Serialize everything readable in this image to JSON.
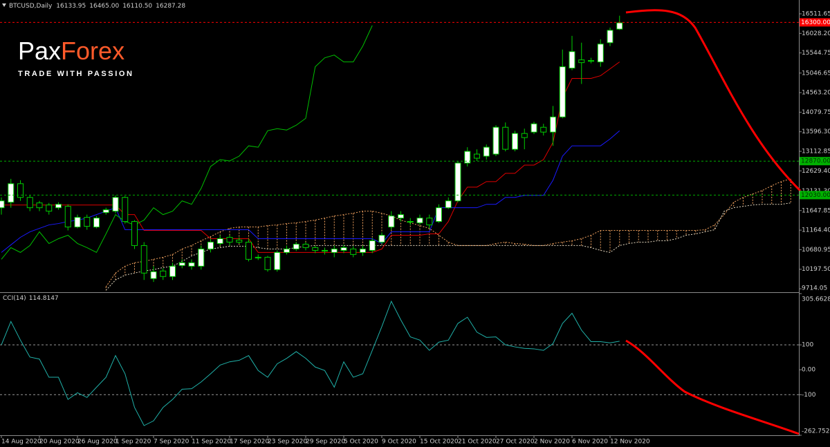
{
  "logo": {
    "brand_a": "Pax",
    "brand_b": "Forex",
    "tagline": "TRADE WITH PASSION"
  },
  "chart_data": [
    {
      "type": "candlestick",
      "title": "BTCUSD,Daily",
      "header_labels": [
        "16133.95",
        "16465.00",
        "16110.50",
        "16287.28"
      ],
      "categories": [
        "14 Aug 2020",
        null,
        null,
        null,
        "20 Aug 2020",
        null,
        null,
        null,
        "26 Aug 2020",
        null,
        null,
        null,
        "1 Sep 2020",
        null,
        null,
        null,
        "7 Sep 2020",
        null,
        null,
        null,
        "11 Sep 2020",
        null,
        null,
        null,
        "17 Sep 2020",
        null,
        null,
        null,
        "23 Sep 2020",
        null,
        null,
        null,
        "29 Sep 2020",
        null,
        null,
        null,
        "5 Oct 2020",
        null,
        null,
        null,
        "9 Oct 2020",
        null,
        null,
        null,
        "15 Oct 2020",
        null,
        null,
        null,
        "21 Oct 2020",
        null,
        null,
        null,
        "27 Oct 2020",
        null,
        null,
        null,
        "2 Nov 2020",
        null,
        null,
        null,
        "6 Nov 2020",
        null,
        null,
        null,
        "12 Nov 2020",
        null,
        null,
        null,
        null,
        null,
        null,
        null,
        null,
        null,
        null,
        null,
        null,
        null,
        null,
        null,
        null,
        null,
        null,
        null
      ],
      "open": [
        11718,
        11854,
        12313,
        11973,
        11837,
        11786,
        11718,
        11752,
        11242,
        11480,
        11242,
        11599,
        11633,
        11973,
        11378,
        10783,
        9967,
        10154,
        10018,
        10290,
        10273,
        10273,
        10698,
        10834,
        10987,
        10919,
        10868,
        10494,
        10494,
        10188,
        10613,
        10698,
        10817,
        10732,
        10664,
        10613,
        10664,
        10698,
        10613,
        10664,
        10868,
        11242,
        11463,
        11378,
        11344,
        11463,
        11378,
        11718,
        11888,
        12823,
        13044,
        12993,
        13044,
        13707,
        13163,
        13554,
        13588,
        13707,
        13588,
        13962,
        15169,
        15373,
        15356,
        15322,
        15798,
        16133.95,
        null,
        null,
        null,
        null,
        null,
        null,
        null,
        null,
        null,
        null,
        null,
        null,
        null,
        null,
        null,
        null,
        null,
        null
      ],
      "high": [
        11973,
        12432,
        12398,
        12024,
        11888,
        11837,
        11854,
        11803,
        11548,
        11548,
        11514,
        11718,
        12024,
        12007,
        11412,
        10868,
        10273,
        10222,
        10358,
        10443,
        10443,
        10783,
        10953,
        11038,
        11038,
        10987,
        10953,
        10562,
        10528,
        10664,
        10783,
        10868,
        10868,
        10783,
        10732,
        10783,
        10800,
        10766,
        10783,
        10970,
        11106,
        11633,
        11633,
        11463,
        11548,
        11548,
        11803,
        11973,
        12874,
        13214,
        13163,
        13282,
        13758,
        13826,
        13622,
        13673,
        13843,
        13792,
        14234,
        15628,
        15968,
        15798,
        15424,
        15883,
        16172,
        16465,
        null,
        null,
        null,
        null,
        null,
        null,
        null,
        null,
        null,
        null,
        null,
        null,
        null,
        null,
        null,
        null,
        null,
        null
      ],
      "low": [
        11548,
        11718,
        11888,
        11633,
        11633,
        11548,
        11667,
        11157,
        11208,
        11174,
        11208,
        11548,
        11582,
        11327,
        10698,
        9933,
        9882,
        9933,
        9933,
        10222,
        10188,
        10188,
        10613,
        10783,
        10783,
        10834,
        10392,
        10426,
        10137,
        10137,
        10562,
        10647,
        10664,
        10596,
        10562,
        10494,
        10596,
        10494,
        10528,
        10596,
        10817,
        11174,
        11378,
        11293,
        11293,
        11208,
        11344,
        11684,
        11854,
        12738,
        12874,
        12908,
        12993,
        13112,
        13112,
        13163,
        13537,
        13503,
        13248,
        13928,
        15118,
        14778,
        15288,
        15203,
        15713,
        16110.5,
        null,
        null,
        null,
        null,
        null,
        null,
        null,
        null,
        null,
        null,
        null,
        null,
        null,
        null,
        null,
        null,
        null,
        null
      ],
      "close": [
        11888,
        12313,
        11973,
        11718,
        11718,
        11633,
        11803,
        11242,
        11480,
        11259,
        11463,
        11667,
        11973,
        11378,
        10783,
        10103,
        10137,
        10018,
        10273,
        10358,
        10358,
        10698,
        10868,
        10953,
        10868,
        10868,
        10443,
        10477,
        10188,
        10613,
        10698,
        10817,
        10732,
        10664,
        10647,
        10698,
        10732,
        10562,
        10698,
        10902,
        11038,
        11514,
        11548,
        11361,
        11463,
        11293,
        11718,
        11888,
        12823,
        13112,
        12942,
        13214,
        13707,
        13163,
        13554,
        13452,
        13792,
        13588,
        13962,
        15203,
        15577,
        15305,
        15356,
        15764,
        16104,
        16287.28,
        null,
        null,
        null,
        null,
        null,
        null,
        null,
        null,
        null,
        null,
        null,
        null,
        null,
        null,
        null,
        null,
        null,
        null
      ],
      "up_color": "#ffffff",
      "down_color": "#000000",
      "wick_color": "#00d000",
      "series": [
        {
          "color": "#e00000",
          "values": [
            11786,
            11786,
            11786,
            11786,
            11786,
            11786,
            11786,
            11786,
            11786,
            11786,
            11786,
            11786,
            11786,
            11548,
            11548,
            11157,
            11157,
            11157,
            11157,
            11157,
            11157,
            11157,
            10953,
            10953,
            10953,
            10953,
            10953,
            10613,
            10613,
            10613,
            10613,
            10613,
            10613,
            10613,
            10613,
            10613,
            10613,
            10613,
            10613,
            10613,
            10698,
            11038,
            11038,
            11038,
            11038,
            11072,
            11072,
            11378,
            11888,
            12228,
            12228,
            12364,
            12364,
            12568,
            12568,
            12772,
            12772,
            12908,
            13333,
            14438,
            14914,
            14914,
            14914,
            14982,
            15152,
            15322,
            null,
            null,
            null,
            null,
            null,
            null,
            null,
            null,
            null,
            null,
            null,
            null,
            null,
            null,
            null,
            null,
            null,
            null
          ]
        },
        {
          "color": "#1a1aff",
          "values": [
            10613,
            10800,
            10987,
            11123,
            11208,
            11293,
            11327,
            11378,
            11412,
            11463,
            11548,
            11633,
            11718,
            11174,
            11174,
            11174,
            11174,
            11174,
            11174,
            11174,
            11174,
            11174,
            11174,
            11174,
            11174,
            11174,
            11174,
            10953,
            10953,
            10953,
            10953,
            10953,
            10953,
            10953,
            10953,
            10953,
            10953,
            10953,
            10953,
            10953,
            10834,
            11123,
            11123,
            11123,
            11123,
            11123,
            11718,
            11718,
            11718,
            11718,
            11718,
            11803,
            11803,
            11973,
            11973,
            12024,
            12024,
            12024,
            12398,
            12993,
            13248,
            13248,
            13248,
            13248,
            13418,
            13622,
            null,
            null,
            null,
            null,
            null,
            null,
            null,
            null,
            null,
            null,
            null,
            null,
            null,
            null,
            null,
            null,
            null,
            null
          ]
        },
        {
          "color": "#00c000",
          "values": [
            10443,
            10732,
            10613,
            10783,
            11123,
            10834,
            10953,
            11038,
            10834,
            10732,
            10613,
            11072,
            11548,
            11378,
            11293,
            11412,
            11718,
            11548,
            11633,
            11888,
            11803,
            12194,
            12738,
            12908,
            12874,
            12993,
            13248,
            13214,
            13622,
            13673,
            13639,
            13758,
            13928,
            15203,
            15424,
            15492,
            15322,
            15322,
            15713,
            16223,
            null,
            null,
            null,
            null,
            null,
            null,
            null,
            null,
            null,
            null,
            null,
            null,
            null,
            null,
            null,
            null,
            null,
            null,
            null,
            null,
            null,
            null,
            null,
            null,
            null,
            null,
            null,
            null,
            null,
            null,
            null,
            null,
            null,
            null,
            null,
            null,
            null,
            null,
            null,
            null,
            null,
            null,
            null,
            null
          ]
        }
      ],
      "cloud": {
        "color_a": "#f4a460",
        "color_b": "#e8dcc4",
        "span_a": [
          null,
          null,
          null,
          null,
          null,
          null,
          null,
          null,
          null,
          null,
          null,
          9763,
          10103,
          10273,
          10358,
          10392,
          10443,
          10494,
          10562,
          10698,
          10783,
          10902,
          11004,
          11123,
          11208,
          11242,
          11242,
          11242,
          11276,
          11293,
          11327,
          11344,
          11378,
          11412,
          11463,
          11514,
          11548,
          11582,
          11633,
          11633,
          11582,
          11514,
          11412,
          11344,
          11276,
          11208,
          11038,
          10868,
          10783,
          10783,
          10783,
          10783,
          10834,
          10868,
          10834,
          10817,
          10783,
          10783,
          10834,
          10868,
          10902,
          10953,
          11038,
          11157,
          11157,
          11157,
          11157,
          11157,
          11157,
          11157,
          11157,
          11157,
          11157,
          11157,
          11174,
          11293,
          11548,
          11854,
          11973,
          12058,
          12143,
          12262,
          12364,
          12432
        ],
        "span_b": [
          null,
          null,
          null,
          null,
          null,
          null,
          null,
          null,
          null,
          null,
          null,
          9678,
          9933,
          10052,
          10103,
          10154,
          10188,
          10239,
          10273,
          10392,
          10528,
          10613,
          10698,
          10732,
          10766,
          10766,
          10766,
          10732,
          10698,
          10698,
          10698,
          10732,
          10766,
          10783,
          10783,
          10783,
          10783,
          10783,
          10783,
          10783,
          10783,
          10783,
          10783,
          10783,
          10783,
          10783,
          10783,
          10783,
          10783,
          10783,
          10783,
          10783,
          10783,
          10783,
          10783,
          10783,
          10783,
          10783,
          10783,
          10783,
          10783,
          10783,
          10732,
          10664,
          10613,
          10783,
          10834,
          10868,
          10868,
          10902,
          10902,
          10953,
          11038,
          11072,
          11123,
          11174,
          11633,
          11718,
          11752,
          11786,
          11803,
          11803,
          11803,
          11837
        ]
      },
      "levels": [
        {
          "value": 16300,
          "label": "16300.00",
          "color": "#ff0000",
          "text_color": "#ffffff"
        },
        {
          "value": 12870,
          "label": "12870.00",
          "color": "#00b000",
          "text_color": "#003000"
        },
        {
          "value": 12030,
          "label": "12030.00",
          "color": "#00b000",
          "text_color": "#003000"
        }
      ],
      "ylim": [
        9629,
        16853
      ],
      "yticks": [
        16511.65,
        {
          "value": 16028.2,
          "label": "16028.20"
        },
        15544.75,
        15046.65,
        {
          "value": 14563.2,
          "label": "14563.20"
        },
        14079.75,
        {
          "value": 13596.3,
          "label": "13596.30"
        },
        13112.85,
        {
          "value": 12629.4,
          "label": "12629.40"
        },
        {
          "value": 12131.3,
          "label": "12131.30"
        },
        11647.85,
        {
          "value": 11164.4,
          "label": "11164.40"
        },
        10680.95,
        {
          "value": 10197.5,
          "label": "10197.50"
        },
        9714.05
      ]
    },
    {
      "type": "line",
      "title": "CCI(14)",
      "color": "#20b2aa",
      "values": [
        100,
        194,
        119,
        51,
        43,
        -30,
        -30,
        -119,
        -92,
        -111,
        -70,
        -30,
        57,
        -16,
        -151,
        -224,
        -205,
        -151,
        -119,
        -78,
        -76,
        -49,
        -16,
        19,
        32,
        38,
        57,
        -3,
        -30,
        24,
        46,
        73,
        46,
        11,
        -3,
        -70,
        32,
        -30,
        -16,
        78,
        173,
        275,
        200,
        132,
        119,
        78,
        111,
        119,
        186,
        211,
        151,
        130,
        132,
        100,
        92,
        86,
        84,
        78,
        105,
        186,
        227,
        159,
        113,
        113,
        108,
        114.8147,
        null,
        null,
        null,
        null,
        null,
        null,
        null,
        null,
        null,
        null,
        null,
        null,
        null,
        null,
        null,
        null,
        null,
        null
      ],
      "level_lines": [
        100,
        -100
      ],
      "ylim": [
        -262.7521,
        305.6628
      ],
      "yticks": [
        305.6628,
        100,
        {
          "value": 0,
          "label": "0.00"
        },
        -100,
        -262.7521
      ]
    }
  ]
}
